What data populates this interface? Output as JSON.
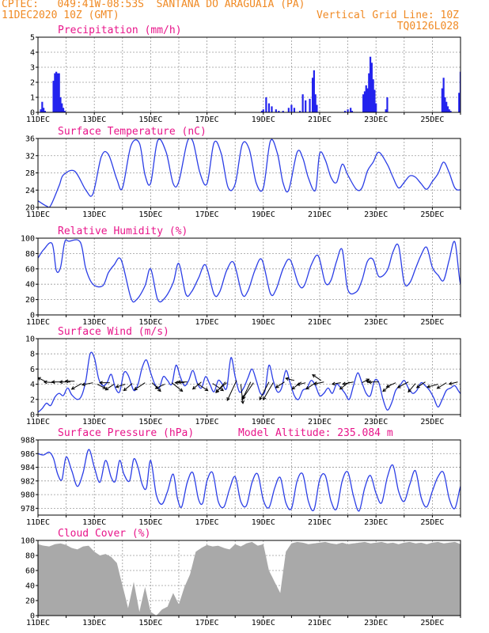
{
  "header": {
    "line1": "CPTEC:   049:41W-08:53S  SANTANA DO ARAGUAIA (PA)",
    "line2_left": "11DEC2020 10Z (GMT)",
    "line2_right": "Vertical Grid Line: 10Z",
    "line3_right": "TQ0126L028"
  },
  "colors": {
    "line": "#2b3ee6",
    "bars": "#2323ee",
    "cloud": "#a9a9a9",
    "title": "#e8158a",
    "header": "#f08a24"
  },
  "chart_data": [
    {
      "type": "bar",
      "title": "Precipitation (mm/h)",
      "ylim": [
        0,
        5
      ],
      "yticks": [
        0,
        1,
        2,
        3,
        4,
        5
      ],
      "xlabels": [
        "11DEC",
        "13DEC",
        "15DEC",
        "17DEC",
        "19DEC",
        "21DEC",
        "23DEC",
        "25DEC"
      ],
      "x_start_day": 11,
      "x_end_day": 26,
      "x": [
        11.1,
        11.15,
        11.2,
        11.25,
        11.55,
        11.6,
        11.65,
        11.7,
        11.75,
        11.8,
        11.85,
        11.9,
        11.95,
        18.95,
        19.0,
        19.1,
        19.2,
        19.3,
        19.45,
        19.55,
        19.7,
        19.9,
        20.0,
        20.1,
        20.3,
        20.4,
        20.5,
        20.65,
        20.75,
        20.8,
        20.85,
        20.9,
        21.9,
        22.0,
        22.1,
        22.15,
        22.55,
        22.6,
        22.65,
        22.7,
        22.75,
        22.8,
        22.85,
        22.9,
        22.95,
        23.0,
        23.35,
        23.4,
        25.35,
        25.4,
        25.45,
        25.5,
        25.55,
        25.6,
        25.65,
        25.95,
        26.0,
        26.05,
        26.1,
        26.15,
        26.2,
        26.25,
        26.3
      ],
      "values": [
        0.2,
        0.7,
        0.3,
        0.1,
        2.1,
        2.6,
        2.7,
        2.6,
        2.6,
        1.0,
        0.6,
        0.3,
        0.1,
        0.1,
        0.2,
        1.0,
        0.6,
        0.4,
        0.2,
        0.1,
        0.1,
        0.3,
        0.5,
        0.3,
        0.1,
        1.2,
        0.8,
        0.9,
        2.3,
        2.8,
        1.2,
        0.5,
        0.1,
        0.2,
        0.3,
        0.1,
        1.2,
        1.4,
        1.8,
        1.6,
        2.6,
        3.7,
        3.3,
        2.2,
        1.5,
        0.6,
        0.2,
        1.0,
        1.6,
        2.3,
        1.0,
        0.7,
        0.4,
        0.2,
        0.1,
        1.3,
        2.7,
        2.4,
        2.8,
        2.5,
        1.5,
        0.7,
        0.4
      ]
    },
    {
      "type": "line",
      "title": "Surface Temperature (nC)",
      "ylim": [
        20,
        36
      ],
      "yticks": [
        20,
        24,
        28,
        32,
        36
      ],
      "xlabels": [
        "11DEC",
        "13DEC",
        "15DEC",
        "17DEC",
        "19DEC",
        "21DEC",
        "23DEC",
        "25DEC"
      ],
      "x_start_day": 11,
      "x_end_day": 26,
      "x": [
        11.0,
        11.3,
        11.45,
        11.75,
        11.9,
        12.3,
        12.7,
        12.95,
        13.25,
        13.5,
        13.8,
        14.0,
        14.3,
        14.6,
        14.8,
        15.0,
        15.25,
        15.55,
        15.8,
        16.0,
        16.3,
        16.5,
        16.75,
        17.0,
        17.25,
        17.5,
        17.75,
        18.0,
        18.25,
        18.5,
        18.75,
        19.0,
        19.25,
        19.5,
        19.7,
        19.9,
        20.2,
        20.4,
        20.6,
        20.85,
        21.0,
        21.2,
        21.4,
        21.6,
        21.8,
        22.0,
        22.3,
        22.5,
        22.7,
        22.9,
        23.1,
        23.4,
        23.6,
        23.8,
        24.0,
        24.2,
        24.4,
        24.6,
        24.8,
        25.0,
        25.2,
        25.4,
        25.6,
        25.8,
        26.0,
        26.2,
        26.5,
        26.75,
        26.9,
        27.0
      ],
      "values": [
        21.5,
        20.3,
        20.4,
        25.0,
        27.5,
        28.4,
        24.0,
        23.1,
        31.8,
        32.3,
        26.5,
        24.5,
        34.3,
        34.9,
        27.5,
        25.6,
        35.5,
        32.8,
        25.5,
        26.0,
        35.2,
        35.3,
        28.0,
        25.5,
        35.0,
        32.6,
        24.6,
        25.4,
        34.6,
        33.5,
        25.6,
        24.5,
        35.4,
        32.5,
        25.7,
        24.0,
        32.8,
        31.5,
        26.8,
        24.0,
        32.5,
        31.0,
        27.0,
        25.8,
        30.0,
        27.5,
        24.2,
        24.5,
        28.5,
        30.5,
        32.8,
        30.0,
        27.0,
        24.5,
        25.8,
        27.3,
        27.0,
        25.5,
        24.2,
        26.0,
        27.8,
        30.5,
        28.0,
        24.5,
        24.1,
        25.0,
        24.5,
        28.0,
        27.5,
        25.5
      ]
    },
    {
      "type": "line",
      "title": "Relative Humidity (%)",
      "ylim": [
        0,
        100
      ],
      "yticks": [
        0,
        20,
        40,
        60,
        80,
        100
      ],
      "xlabels": [
        "11DEC",
        "13DEC",
        "15DEC",
        "17DEC",
        "19DEC",
        "21DEC",
        "23DEC",
        "25DEC"
      ],
      "x_start_day": 11,
      "x_end_day": 26,
      "x": [
        11.0,
        11.2,
        11.5,
        11.65,
        11.8,
        11.95,
        12.1,
        12.5,
        12.7,
        12.95,
        13.3,
        13.5,
        13.7,
        13.95,
        14.3,
        14.5,
        14.8,
        15.0,
        15.25,
        15.5,
        15.8,
        16.0,
        16.25,
        16.45,
        16.7,
        16.95,
        17.25,
        17.45,
        17.7,
        17.95,
        18.25,
        18.45,
        18.7,
        18.95,
        19.25,
        19.45,
        19.7,
        19.95,
        20.25,
        20.45,
        20.7,
        20.95,
        21.2,
        21.4,
        21.6,
        21.8,
        22.0,
        22.3,
        22.5,
        22.7,
        22.9,
        23.1,
        23.4,
        23.6,
        23.8,
        24.0,
        24.2,
        24.4,
        24.6,
        24.8,
        25.0,
        25.2,
        25.4,
        25.6,
        25.8,
        26.0,
        26.2,
        26.5,
        26.75,
        26.9,
        27.0
      ],
      "values": [
        74.0,
        85.0,
        93.0,
        58.0,
        62.0,
        95.0,
        96.0,
        95.0,
        60.0,
        40.0,
        38.0,
        55.0,
        65.0,
        72.0,
        22.0,
        20.0,
        38.0,
        60.0,
        20.0,
        22.0,
        42.0,
        67.0,
        27.0,
        30.0,
        48.0,
        65.0,
        27.0,
        30.0,
        58.0,
        68.0,
        27.0,
        31.0,
        58.0,
        72.0,
        28.0,
        33.0,
        60.0,
        72.0,
        40.0,
        38.0,
        65.0,
        77.0,
        42.0,
        45.0,
        70.0,
        85.0,
        33.0,
        30.0,
        45.0,
        70.0,
        72.0,
        50.0,
        58.0,
        82.0,
        90.0,
        42.0,
        42.0,
        60.0,
        78.0,
        88.0,
        62.0,
        52.0,
        45.0,
        72.0,
        95.0,
        40.0,
        45.0,
        60.0,
        68.0,
        72.0,
        75.0
      ]
    },
    {
      "type": "line",
      "title": "Surface Wind (m/s)",
      "ylim": [
        0,
        10
      ],
      "yticks": [
        0,
        2,
        4,
        6,
        8,
        10
      ],
      "xlabels": [
        "11DEC",
        "13DEC",
        "15DEC",
        "17DEC",
        "19DEC",
        "21DEC",
        "23DEC",
        "25DEC"
      ],
      "x_start_day": 11,
      "x_end_day": 26,
      "x": [
        11.0,
        11.15,
        11.3,
        11.45,
        11.6,
        11.75,
        11.9,
        12.05,
        12.2,
        12.4,
        12.55,
        12.7,
        12.85,
        13.0,
        13.15,
        13.3,
        13.45,
        13.6,
        13.75,
        13.9,
        14.05,
        14.2,
        14.4,
        14.55,
        14.7,
        14.85,
        15.0,
        15.15,
        15.3,
        15.45,
        15.6,
        15.75,
        15.9,
        16.05,
        16.2,
        16.35,
        16.5,
        16.65,
        16.8,
        16.95,
        17.1,
        17.25,
        17.4,
        17.55,
        17.7,
        17.85,
        18.0,
        18.15,
        18.3,
        18.45,
        18.6,
        18.75,
        18.9,
        19.05,
        19.2,
        19.35,
        19.5,
        19.65,
        19.8,
        19.95,
        20.1,
        20.25,
        20.4,
        20.55,
        20.7,
        20.85,
        21.0,
        21.15,
        21.3,
        21.45,
        21.6,
        21.75,
        21.9,
        22.05,
        22.2,
        22.35,
        22.5,
        22.65,
        22.8,
        22.95,
        23.1,
        23.25,
        23.4,
        23.55,
        23.7,
        23.85,
        24.0,
        24.15,
        24.3,
        24.45,
        24.6,
        24.75,
        24.9,
        25.05,
        25.2,
        25.35,
        25.5,
        25.65,
        25.8,
        25.95,
        26.1,
        26.25,
        26.4,
        26.55,
        26.7,
        26.85,
        27.0
      ],
      "values": [
        0.3,
        0.8,
        1.5,
        1.2,
        2.3,
        2.8,
        2.5,
        3.5,
        2.6,
        2.0,
        2.5,
        4.5,
        8.0,
        7.5,
        4.8,
        3.8,
        4.2,
        5.3,
        3.5,
        3.0,
        5.5,
        5.2,
        3.2,
        4.0,
        6.2,
        7.2,
        5.5,
        4.0,
        3.5,
        5.0,
        4.5,
        4.0,
        6.5,
        5.0,
        3.8,
        4.5,
        5.8,
        4.2,
        3.5,
        5.0,
        4.0,
        3.0,
        4.5,
        4.0,
        3.5,
        7.5,
        5.0,
        3.0,
        3.5,
        4.8,
        6.0,
        4.5,
        2.8,
        3.0,
        6.5,
        4.5,
        3.0,
        3.5,
        5.8,
        4.2,
        2.5,
        2.0,
        3.2,
        3.5,
        4.5,
        3.8,
        2.5,
        2.8,
        3.5,
        2.8,
        4.0,
        3.5,
        2.8,
        2.0,
        3.8,
        5.5,
        4.2,
        2.8,
        2.5,
        4.5,
        4.2,
        2.0,
        0.6,
        1.5,
        3.2,
        3.8,
        4.5,
        3.5,
        2.8,
        3.2,
        4.2,
        3.8,
        3.2,
        2.2,
        1.0,
        2.0,
        3.2,
        3.5,
        3.8,
        3.0,
        2.5,
        3.5,
        5.0,
        4.2,
        3.0,
        3.5,
        2.8
      ],
      "barbs_x": [
        11.3,
        11.6,
        11.9,
        12.15,
        12.3,
        12.55,
        12.95,
        13.1,
        13.55,
        13.7,
        14.1,
        14.35,
        14.8,
        15.05,
        15.5,
        15.75,
        16.2,
        16.3,
        16.65,
        16.8,
        17.2,
        17.65,
        17.7,
        18.05,
        18.2,
        18.55,
        18.65,
        19.2,
        19.35,
        19.75,
        20.1,
        20.35,
        20.5,
        20.9,
        21.05,
        21.15,
        21.75,
        22.05,
        22.2,
        22.5,
        22.85,
        23.1,
        23.55,
        23.7,
        24.15,
        24.4,
        24.75,
        25.2,
        25.5,
        25.9,
        26.25,
        26.45,
        26.55
      ],
      "barbs_y": [
        4.3,
        4.2,
        4.3,
        4.3,
        4.4,
        4.1,
        4.2,
        4.0,
        4.2,
        4.0,
        4.0,
        4.1,
        4.2,
        4.2,
        4.0,
        4.2,
        4.2,
        4.3,
        4.1,
        4.3,
        4.1,
        4.3,
        4.2,
        4.5,
        4.0,
        4.3,
        4.2,
        4.3,
        4.2,
        4.3,
        4.5,
        4.3,
        4.2,
        4.3,
        4.5,
        4.3,
        4.2,
        4.3,
        4.3,
        4.2,
        4.2,
        4.3,
        4.0,
        4.2,
        4.3,
        4.1,
        4.3,
        4.0,
        4.2,
        4.3,
        4.0,
        4.1,
        4.2
      ],
      "barbs_u": [
        -1.2,
        -1.5,
        -1.6,
        -1.5,
        -1.3,
        -1.4,
        -1.5,
        1.2,
        -1.4,
        -1.2,
        -1.3,
        -1.2,
        -1.5,
        1.2,
        -1.3,
        1.5,
        -1.3,
        -1.3,
        1.5,
        -1.2,
        1.5,
        -1.3,
        -1.5,
        -1.3,
        0.3,
        -1.2,
        -1.5,
        -1.3,
        -1.4,
        -1.2,
        -1.2,
        -1.3,
        -1.2,
        -1.5,
        -1.2,
        -1.4,
        -1.2,
        -1.3,
        -1.5,
        1.0,
        -0.8,
        -1.5,
        -1.2,
        -1.3,
        -1.5,
        -1.0,
        -1.2,
        -1.5,
        -1.3,
        -1.2,
        -1.0,
        -1.2,
        -1.1
      ],
      "barbs_v": [
        0.6,
        0.1,
        0.0,
        0.0,
        0.0,
        -0.8,
        -0.3,
        -0.6,
        0.0,
        -0.8,
        -0.4,
        -1.0,
        -1.0,
        -1.2,
        -0.6,
        -1.2,
        0.0,
        0.0,
        -1.0,
        -1.0,
        -1.0,
        -1.5,
        -1.3,
        -2.8,
        -2.7,
        -2.5,
        -2.2,
        -2.5,
        -2.4,
        -0.8,
        0.3,
        -1.0,
        -0.3,
        -1.0,
        0.8,
        -0.3,
        -0.2,
        -1.0,
        -0.3,
        0.5,
        0.3,
        0.0,
        -1.0,
        -0.6,
        -0.8,
        -1.2,
        -0.8,
        -0.4,
        -0.8,
        -0.3,
        -0.6,
        -0.3,
        -0.5
      ]
    },
    {
      "type": "line",
      "title": "Surface Pressure (hPa)",
      "subtitle": "Model Altitude: 235.084 m",
      "ylim": [
        977,
        988
      ],
      "yticks": [
        978,
        980,
        982,
        984,
        986,
        988
      ],
      "xlabels": [
        "11DEC",
        "13DEC",
        "15DEC",
        "17DEC",
        "19DEC",
        "21DEC",
        "23DEC",
        "25DEC"
      ],
      "x_start_day": 11,
      "x_end_day": 26,
      "x": [
        11.0,
        11.2,
        11.4,
        11.55,
        11.7,
        11.85,
        12.0,
        12.2,
        12.4,
        12.6,
        12.8,
        13.0,
        13.2,
        13.4,
        13.6,
        13.75,
        13.9,
        14.05,
        14.25,
        14.4,
        14.55,
        14.7,
        14.85,
        15.0,
        15.2,
        15.4,
        15.6,
        15.8,
        15.95,
        16.1,
        16.3,
        16.5,
        16.7,
        16.85,
        17.0,
        17.2,
        17.4,
        17.6,
        17.8,
        18.0,
        18.2,
        18.4,
        18.6,
        18.8,
        19.0,
        19.2,
        19.4,
        19.6,
        19.8,
        20.0,
        20.2,
        20.4,
        20.6,
        20.8,
        21.0,
        21.2,
        21.4,
        21.6,
        21.8,
        22.0,
        22.2,
        22.4,
        22.6,
        22.8,
        23.0,
        23.2,
        23.4,
        23.6,
        23.8,
        24.0,
        24.2,
        24.4,
        24.6,
        24.8,
        25.0,
        25.2,
        25.4,
        25.6,
        25.8,
        26.0,
        26.2,
        26.4,
        26.6,
        26.8,
        27.0
      ],
      "values": [
        986.0,
        985.8,
        986.2,
        985.3,
        983.0,
        982.2,
        985.5,
        983.5,
        981.2,
        983.2,
        986.6,
        984.0,
        981.8,
        985.0,
        982.5,
        982.0,
        985.0,
        983.0,
        982.0,
        985.2,
        984.0,
        981.5,
        981.0,
        985.0,
        980.0,
        978.6,
        980.5,
        983.0,
        979.5,
        978.2,
        981.8,
        983.2,
        979.3,
        978.8,
        982.0,
        983.2,
        979.0,
        978.2,
        980.8,
        982.6,
        979.0,
        978.4,
        981.8,
        983.0,
        979.2,
        978.1,
        980.9,
        982.5,
        978.8,
        978.0,
        982.0,
        983.0,
        979.0,
        977.8,
        982.2,
        982.8,
        979.1,
        977.9,
        982.0,
        983.3,
        979.8,
        977.6,
        981.0,
        982.8,
        980.2,
        978.8,
        982.5,
        984.3,
        980.5,
        979.0,
        981.5,
        983.5,
        979.6,
        978.2,
        980.5,
        982.6,
        983.2,
        979.4,
        978.0,
        981.2,
        983.0,
        979.8,
        977.6,
        978.8,
        981.0
      ]
    },
    {
      "type": "area",
      "title": "Cloud Cover (%)",
      "ylim": [
        0,
        100
      ],
      "yticks": [
        0,
        20,
        40,
        60,
        80,
        100
      ],
      "xlabels": [
        "11DEC",
        "13DEC",
        "15DEC",
        "17DEC",
        "19DEC",
        "21DEC",
        "23DEC",
        "25DEC"
      ],
      "x_start_day": 11,
      "x_end_day": 26,
      "x": [
        11.0,
        11.2,
        11.4,
        11.6,
        11.8,
        12.0,
        12.2,
        12.4,
        12.6,
        12.8,
        13.0,
        13.2,
        13.4,
        13.6,
        13.8,
        14.0,
        14.2,
        14.4,
        14.6,
        14.8,
        15.0,
        15.2,
        15.4,
        15.6,
        15.8,
        16.0,
        16.2,
        16.4,
        16.6,
        16.8,
        17.0,
        17.2,
        17.4,
        17.6,
        17.8,
        18.0,
        18.2,
        18.4,
        18.6,
        18.8,
        19.0,
        19.2,
        19.4,
        19.6,
        19.8,
        20.0,
        20.2,
        20.4,
        20.6,
        20.8,
        21.0,
        21.2,
        21.4,
        21.6,
        21.8,
        22.0,
        22.2,
        22.4,
        22.6,
        22.8,
        23.0,
        23.2,
        23.4,
        23.6,
        23.8,
        24.0,
        24.2,
        24.4,
        24.6,
        24.8,
        25.0,
        25.2,
        25.4,
        25.6,
        25.8,
        26.0,
        26.2,
        26.4,
        26.6,
        26.8,
        27.0
      ],
      "values": [
        95,
        93,
        92,
        95,
        96,
        94,
        90,
        88,
        92,
        93,
        85,
        80,
        82,
        78,
        70,
        40,
        10,
        45,
        5,
        38,
        5,
        0,
        8,
        12,
        30,
        15,
        38,
        55,
        85,
        90,
        94,
        92,
        93,
        90,
        88,
        95,
        92,
        96,
        98,
        93,
        95,
        60,
        45,
        30,
        85,
        96,
        98,
        97,
        95,
        96,
        97,
        98,
        96,
        95,
        97,
        95,
        96,
        97,
        98,
        96,
        97,
        98,
        96,
        97,
        95,
        97,
        98,
        96,
        97,
        95,
        97,
        98,
        96,
        97,
        98,
        95,
        96,
        97,
        98,
        96,
        97
      ]
    }
  ]
}
